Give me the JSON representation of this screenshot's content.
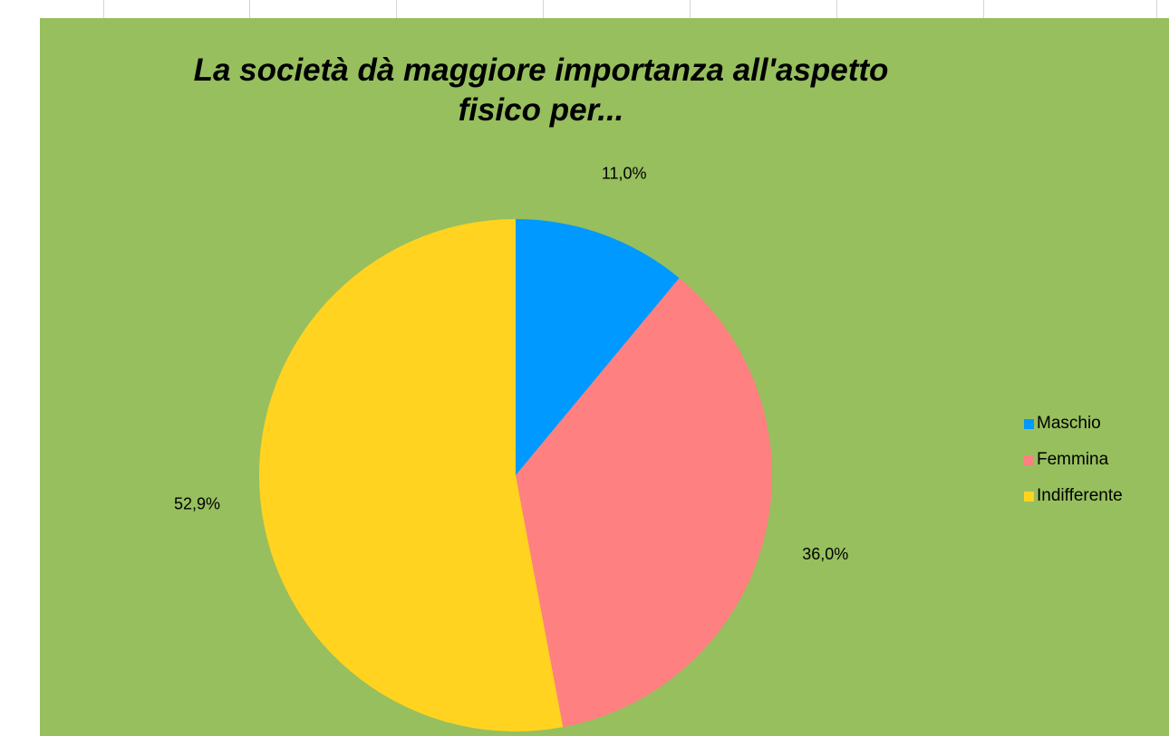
{
  "chart_data": {
    "type": "pie",
    "title": "La società dà maggiore importanza all'aspetto fisico per...",
    "title_lines": [
      "La società dà maggiore importanza all'aspetto",
      "fisico per..."
    ],
    "categories": [
      "Maschio",
      "Femmina",
      "Indifferente"
    ],
    "values": [
      11.0,
      36.0,
      52.9
    ],
    "data_labels": [
      "11,0%",
      "36,0%",
      "52,9%"
    ],
    "colors": [
      "#0099ff",
      "#ff8080",
      "#ffd320"
    ],
    "legend_position": "right",
    "start_angle": "12 o'clock, clockwise"
  },
  "background_color": "#97bf5e"
}
